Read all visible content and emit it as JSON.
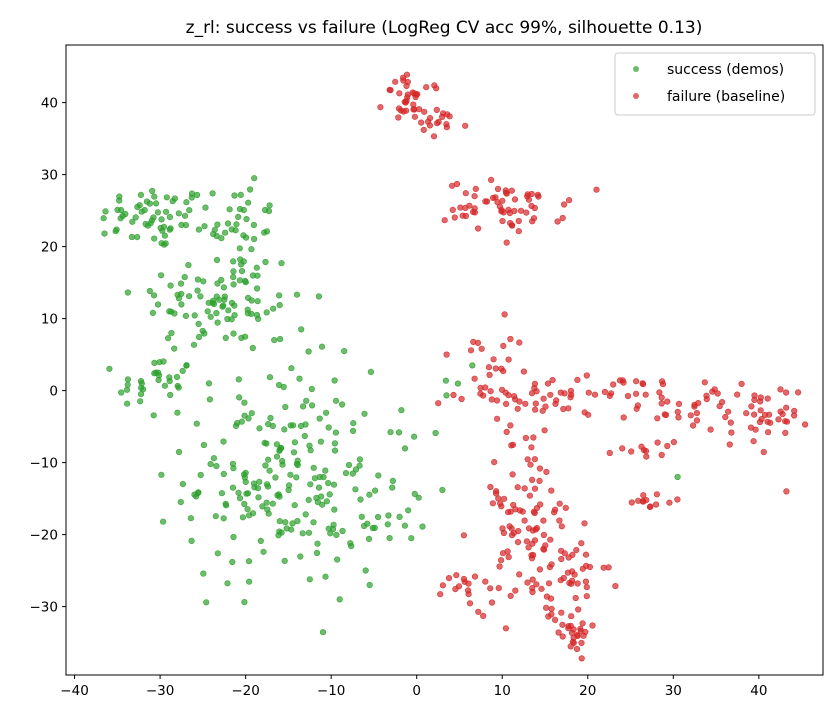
{
  "chart_data": {
    "type": "scatter",
    "title": "z_rl: success vs failure  (LogReg CV acc 99%, silhouette 0.13)",
    "xlabel": "",
    "ylabel": "",
    "xlim": [
      -41,
      47.5
    ],
    "ylim": [
      -39.5,
      48
    ],
    "xticks": [
      -40,
      -30,
      -20,
      -10,
      0,
      10,
      20,
      30,
      40
    ],
    "yticks": [
      -30,
      -20,
      -10,
      0,
      10,
      20,
      30,
      40
    ],
    "grid": false,
    "legend_position": "top-right",
    "series": [
      {
        "name": "success (demos)",
        "color": "#2ca02c",
        "clusters": [
          {
            "cx": -30.5,
            "cy": 24.0,
            "sx": 3.2,
            "sy": 2.2,
            "n": 55
          },
          {
            "cx": -21.5,
            "cy": 24.0,
            "sx": 3.0,
            "sy": 2.5,
            "n": 35
          },
          {
            "cx": -23.0,
            "cy": 12.5,
            "sx": 5.0,
            "sy": 3.8,
            "n": 95
          },
          {
            "cx": -30.5,
            "cy": 1.0,
            "sx": 2.2,
            "sy": 2.0,
            "n": 30
          },
          {
            "cx": -16.0,
            "cy": -12.0,
            "sx": 5.5,
            "sy": 7.5,
            "n": 200
          },
          {
            "cx": -3.5,
            "cy": -18.0,
            "sx": 3.0,
            "sy": 3.0,
            "n": 20
          },
          {
            "cx": 0.5,
            "cy": -3.0,
            "sx": 2.0,
            "sy": 2.0,
            "n": 8
          }
        ],
        "points": [
          [
            -36.5,
            21.8
          ],
          [
            -19.0,
            29.5
          ],
          [
            6.5,
            3.5
          ],
          [
            30.5,
            -12.0
          ],
          [
            -5.5,
            -27.0
          ],
          [
            -9.0,
            -29.0
          ],
          [
            3.0,
            -13.8
          ],
          [
            -13.5,
            8.5
          ]
        ]
      },
      {
        "name": "failure (baseline)",
        "color": "#d62728",
        "clusters": [
          {
            "cx": -0.5,
            "cy": 40.5,
            "sx": 1.6,
            "sy": 1.6,
            "n": 35
          },
          {
            "cx": 2.5,
            "cy": 37.0,
            "sx": 1.8,
            "sy": 1.0,
            "n": 15
          },
          {
            "cx": 10.5,
            "cy": 25.5,
            "sx": 3.5,
            "sy": 1.8,
            "n": 60
          },
          {
            "cx": 9.0,
            "cy": 4.5,
            "sx": 1.8,
            "sy": 3.0,
            "n": 20
          },
          {
            "cx": 18.5,
            "cy": -0.5,
            "sx": 7.0,
            "sy": 1.3,
            "n": 60
          },
          {
            "cx": 33.0,
            "cy": -2.0,
            "sx": 3.5,
            "sy": 2.0,
            "n": 30
          },
          {
            "cx": 40.5,
            "cy": -5.0,
            "sx": 2.0,
            "sy": 3.0,
            "n": 35
          },
          {
            "cx": 12.5,
            "cy": -17.0,
            "sx": 3.0,
            "sy": 6.5,
            "n": 90
          },
          {
            "cx": 17.0,
            "cy": -27.0,
            "sx": 2.8,
            "sy": 3.5,
            "n": 45
          },
          {
            "cx": 18.0,
            "cy": -33.0,
            "sx": 1.4,
            "sy": 1.6,
            "n": 25
          },
          {
            "cx": 26.5,
            "cy": -15.5,
            "sx": 1.8,
            "sy": 0.6,
            "n": 12
          },
          {
            "cx": 6.5,
            "cy": -27.0,
            "sx": 1.8,
            "sy": 1.2,
            "n": 15
          },
          {
            "cx": 26.5,
            "cy": -7.5,
            "sx": 1.6,
            "sy": 1.2,
            "n": 12
          }
        ],
        "points": [
          [
            3.5,
            5.0
          ],
          [
            9.5,
            28.0
          ]
        ]
      }
    ]
  }
}
